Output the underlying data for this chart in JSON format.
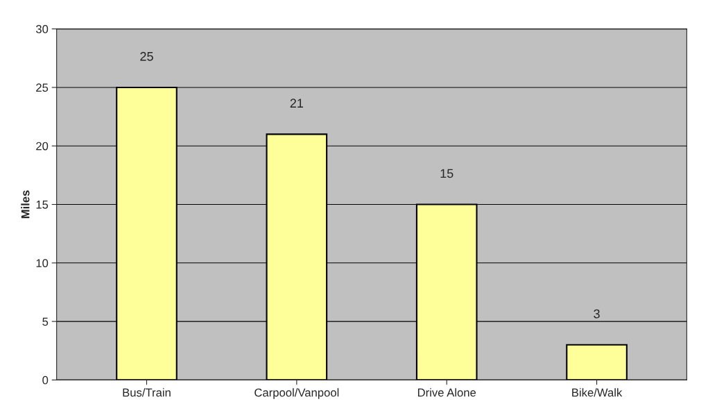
{
  "chart_data": {
    "type": "bar",
    "ylabel": "Miles",
    "categories": [
      "Bus/Train",
      "Carpool/Vanpool",
      "Drive Alone",
      "Bike/Walk"
    ],
    "values": [
      25,
      21,
      15,
      3
    ],
    "color": "#ffff99",
    "ylim": [
      0,
      30
    ],
    "yticks": [
      0,
      5,
      10,
      15,
      20,
      25,
      30
    ],
    "grid": "y",
    "data_labels": true
  }
}
